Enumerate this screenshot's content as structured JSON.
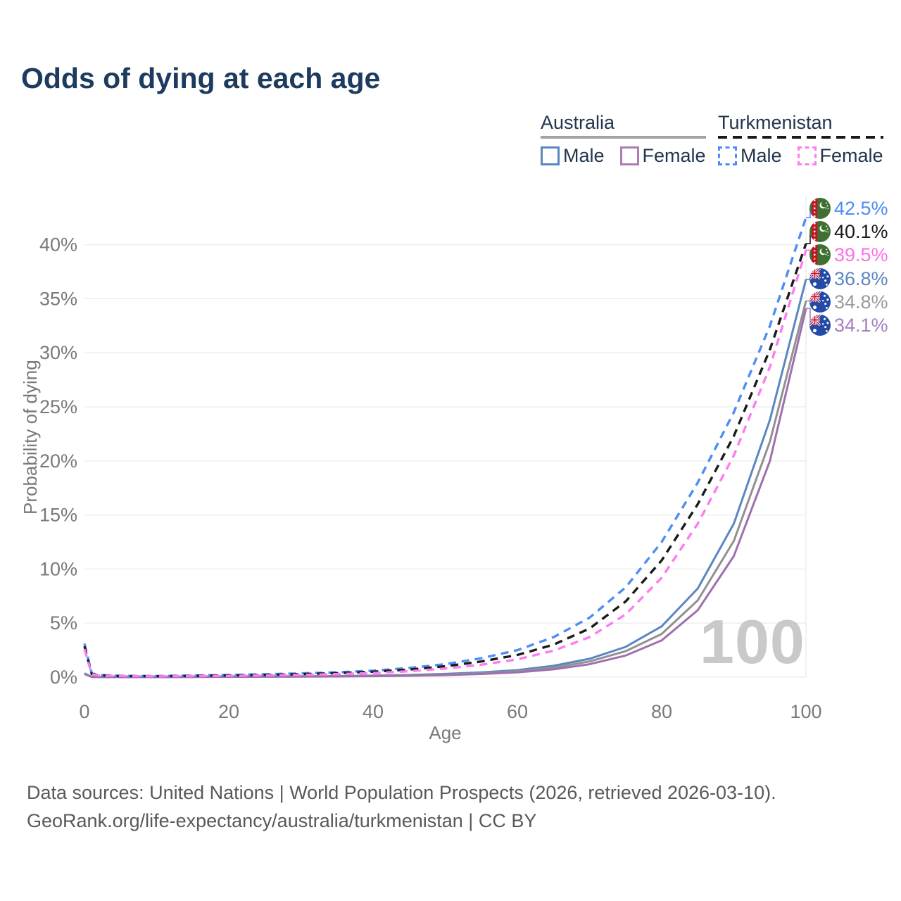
{
  "title": "Odds of dying at each age",
  "watermark": "100",
  "legend": {
    "groups": [
      {
        "label": "Australia",
        "line_style": "solid",
        "underline_color": "#a3a3a3",
        "items": [
          {
            "label": "Male",
            "color": "#5b87c0"
          },
          {
            "label": "Female",
            "color": "#b07ab5"
          }
        ]
      },
      {
        "label": "Turkmenistan",
        "line_style": "dashed",
        "underline_color": "#1a1a1a",
        "items": [
          {
            "label": "Male",
            "color": "#4e8df5"
          },
          {
            "label": "Female",
            "color": "#fb7df0"
          }
        ]
      }
    ]
  },
  "footer": {
    "line1": "Data sources: United Nations | World Population Prospects (2026, retrieved 2026-03-10).",
    "line2": "GeoRank.org/life-expectancy/australia/turkmenistan | CC BY"
  },
  "chart_data": {
    "type": "line",
    "title": "Odds of dying at each age",
    "xlabel": "Age",
    "ylabel": "Probability of dying",
    "xlim": [
      0,
      100
    ],
    "ylim_pct": [
      0,
      44.5
    ],
    "grid": true,
    "x_ticks": [
      0,
      20,
      40,
      60,
      80,
      100
    ],
    "y_ticks": [
      0,
      5,
      10,
      15,
      20,
      25,
      30,
      35,
      40
    ],
    "y_tick_labels": [
      "0%",
      "5%",
      "10%",
      "15%",
      "20%",
      "25%",
      "30%",
      "35%",
      "40%"
    ],
    "x": [
      0,
      1,
      2,
      5,
      10,
      15,
      20,
      25,
      30,
      35,
      40,
      45,
      50,
      55,
      60,
      65,
      70,
      75,
      80,
      85,
      90,
      95,
      100
    ],
    "series": [
      {
        "name": "Turkmenistan Male",
        "country": "Turkmenistan",
        "color": "#4e8df5",
        "label_color": "#4e8df5",
        "dashed": true,
        "end_label": "42.5%",
        "end_value_pct": 42.5,
        "values": [
          3.1,
          0.35,
          0.2,
          0.12,
          0.1,
          0.15,
          0.2,
          0.27,
          0.35,
          0.45,
          0.6,
          0.85,
          1.2,
          1.75,
          2.5,
          3.7,
          5.5,
          8.3,
          12.5,
          18.0,
          24.5,
          32.5,
          42.5
        ]
      },
      {
        "name": "Turkmenistan Both sexes",
        "country": "Turkmenistan",
        "color": "#1a1a1a",
        "label_color": "#1a1a1a",
        "dashed": true,
        "end_label": "40.1%",
        "end_value_pct": 40.1,
        "values": [
          2.85,
          0.3,
          0.17,
          0.1,
          0.09,
          0.12,
          0.16,
          0.21,
          0.28,
          0.37,
          0.5,
          0.7,
          1.0,
          1.45,
          2.05,
          3.0,
          4.5,
          7.0,
          10.8,
          16.0,
          22.3,
          30.3,
          40.1
        ]
      },
      {
        "name": "Turkmenistan Female",
        "country": "Turkmenistan",
        "color": "#fb7df0",
        "label_color": "#fb70e4",
        "dashed": true,
        "end_label": "39.5%",
        "end_value_pct": 39.5,
        "values": [
          2.6,
          0.27,
          0.15,
          0.09,
          0.08,
          0.1,
          0.12,
          0.16,
          0.21,
          0.28,
          0.38,
          0.55,
          0.8,
          1.15,
          1.65,
          2.45,
          3.7,
          5.8,
          9.2,
          14.2,
          20.5,
          28.7,
          39.5
        ]
      },
      {
        "name": "Australia Male",
        "country": "Australia",
        "color": "#5b87c0",
        "label_color": "#5b87c0",
        "dashed": false,
        "end_label": "36.8%",
        "end_value_pct": 36.8,
        "values": [
          0.35,
          0.03,
          0.02,
          0.012,
          0.012,
          0.03,
          0.06,
          0.07,
          0.08,
          0.1,
          0.14,
          0.2,
          0.3,
          0.44,
          0.65,
          1.05,
          1.7,
          2.8,
          4.7,
          8.2,
          14.2,
          23.8,
          36.8
        ]
      },
      {
        "name": "Australia Both sexes",
        "country": "Australia",
        "color": "#919191",
        "label_color": "#9a9a9a",
        "dashed": false,
        "end_label": "34.8%",
        "end_value_pct": 34.8,
        "values": [
          0.32,
          0.027,
          0.018,
          0.01,
          0.01,
          0.025,
          0.045,
          0.055,
          0.065,
          0.082,
          0.11,
          0.16,
          0.24,
          0.36,
          0.55,
          0.88,
          1.45,
          2.4,
          4.0,
          7.1,
          12.6,
          21.8,
          34.8
        ]
      },
      {
        "name": "Australia Female",
        "country": "Australia",
        "color": "#a06fb0",
        "label_color": "#a77fc0",
        "dashed": false,
        "end_label": "34.1%",
        "end_value_pct": 34.1,
        "values": [
          0.29,
          0.024,
          0.015,
          0.009,
          0.009,
          0.02,
          0.032,
          0.04,
          0.05,
          0.065,
          0.09,
          0.13,
          0.19,
          0.29,
          0.45,
          0.72,
          1.2,
          2.0,
          3.4,
          6.2,
          11.2,
          20.0,
          34.1
        ]
      }
    ],
    "legend_position": "top-right",
    "age_frame_indicator": "100"
  }
}
